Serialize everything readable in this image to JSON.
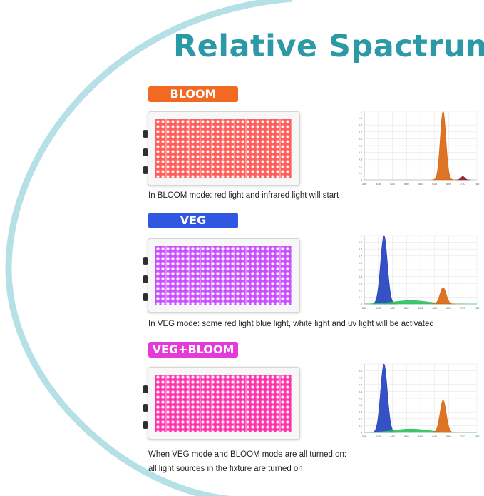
{
  "title": "Relative Spactrum",
  "accent_color": "#2b9aa6",
  "modes": [
    {
      "badge": "BLOOM",
      "badge_color": "#f26a22",
      "led_colors": [
        "#ff5c5c",
        "#ff8a80"
      ],
      "caption_lines": [
        "In BLOOM mode: red light and infrared light will start"
      ],
      "chart": {
        "x_ticks": [
          "380",
          "430",
          "480",
          "530",
          "580",
          "630",
          "680",
          "730",
          "780"
        ],
        "y_ticks": [
          "0",
          "0.1",
          "0.2",
          "0.3",
          "0.4",
          "0.5",
          "0.6",
          "0.7",
          "0.8",
          "0.9",
          "1"
        ],
        "peaks": [
          {
            "center": 660,
            "height": 1.0,
            "width": 10,
            "color": "#d9640e"
          },
          {
            "center": 730,
            "height": 0.05,
            "width": 7,
            "color": "#8b1a1a"
          }
        ]
      }
    },
    {
      "badge": "VEG",
      "badge_color": "#2f57e0",
      "led_colors": [
        "#c84dff",
        "#e6a0ff"
      ],
      "caption_lines": [
        "In VEG mode: some red light blue light, white light and uv light will be activated"
      ],
      "chart": {
        "x_ticks": [
          "380",
          "430",
          "480",
          "530",
          "580",
          "630",
          "680",
          "730",
          "780"
        ],
        "y_ticks": [
          "0",
          "0.1",
          "0.2",
          "0.3",
          "0.4",
          "0.5",
          "0.6",
          "0.7",
          "0.8",
          "0.9",
          "1"
        ],
        "peaks": [
          {
            "center": 450,
            "height": 1.0,
            "width": 12,
            "color": "#1f3fbf"
          },
          {
            "center": 545,
            "height": 0.05,
            "width": 60,
            "color": "#2cbf5c"
          },
          {
            "center": 660,
            "height": 0.24,
            "width": 11,
            "color": "#d9640e"
          }
        ]
      }
    },
    {
      "badge": "VEG+BLOOM",
      "badge_color": "#e33ad9",
      "led_colors": [
        "#ff2fa8",
        "#ff7fd0"
      ],
      "caption_lines": [
        "When VEG mode and BLOOM mode are all turned on:",
        "all light sources in the fixture are turned on"
      ],
      "chart": {
        "x_ticks": [
          "380",
          "430",
          "480",
          "530",
          "580",
          "630",
          "680",
          "730",
          "780"
        ],
        "y_ticks": [
          "0",
          "0.1",
          "0.2",
          "0.3",
          "0.4",
          "0.5",
          "0.6",
          "0.7",
          "0.8",
          "0.9",
          "1"
        ],
        "peaks": [
          {
            "center": 450,
            "height": 1.0,
            "width": 12,
            "color": "#1f3fbf"
          },
          {
            "center": 545,
            "height": 0.05,
            "width": 60,
            "color": "#2cbf5c"
          },
          {
            "center": 660,
            "height": 0.47,
            "width": 11,
            "color": "#d9640e"
          }
        ]
      }
    }
  ]
}
